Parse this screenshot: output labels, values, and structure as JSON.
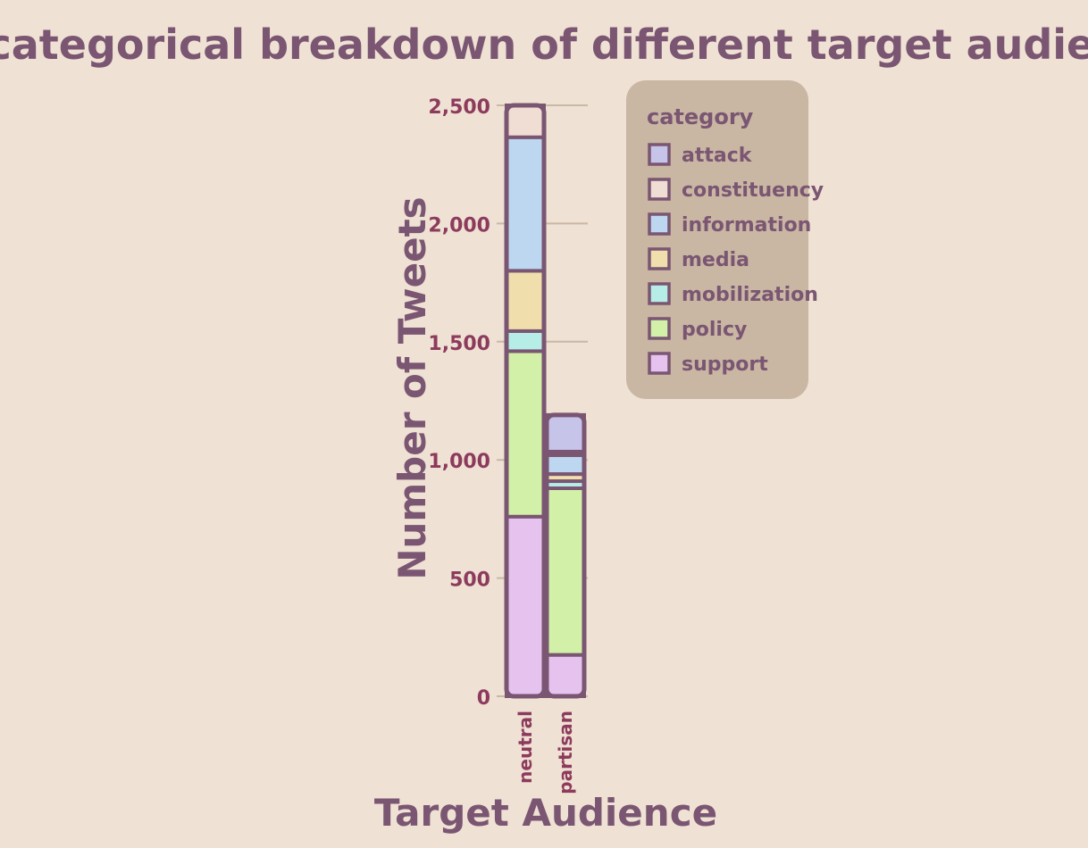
{
  "chart_data": {
    "type": "bar",
    "stacked": true,
    "title": "The categorical breakdown of different target audiences",
    "xlabel": "Target Audience",
    "ylabel": "Number of Tweets",
    "categories": [
      "neutral",
      "partisan"
    ],
    "ylim": [
      0,
      2500
    ],
    "yticks": [
      0,
      500,
      1000,
      1500,
      2000,
      2500
    ],
    "ytick_labels": [
      "0",
      "500",
      "1,000",
      "1,500",
      "2,000",
      "2,500"
    ],
    "grid": true,
    "legend_title": "category",
    "legend_position": "top-right",
    "series": [
      {
        "name": "support",
        "color": "#e6c3ef",
        "values": [
          760,
          175
        ]
      },
      {
        "name": "policy",
        "color": "#d3f0a9",
        "values": [
          700,
          705
        ]
      },
      {
        "name": "mobilization",
        "color": "#b6eee7",
        "values": [
          85,
          30
        ]
      },
      {
        "name": "media",
        "color": "#f0dfac",
        "values": [
          255,
          30
        ]
      },
      {
        "name": "information",
        "color": "#bcd7ef",
        "values": [
          565,
          80
        ]
      },
      {
        "name": "constituency",
        "color": "#f0ddd3",
        "values": [
          135,
          15
        ]
      },
      {
        "name": "attack",
        "color": "#c7c4ea",
        "values": [
          0,
          155
        ]
      }
    ],
    "legend_order": [
      "attack",
      "constituency",
      "information",
      "media",
      "mobilization",
      "policy",
      "support"
    ]
  }
}
